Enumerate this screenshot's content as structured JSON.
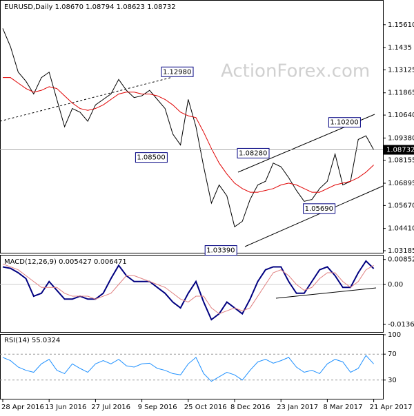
{
  "chart_data": {
    "type": "line",
    "header": "EURUSD,Daily  1.08670 1.08794 1.08623 1.08732",
    "watermark": "ActionForex.com",
    "categories": [
      "28 Apr 2016",
      null,
      null,
      null,
      null,
      null,
      "13 Jun 2016",
      null,
      null,
      null,
      null,
      null,
      "27 Jul 2016",
      null,
      null,
      null,
      null,
      null,
      "9 Sep 2016",
      null,
      null,
      null,
      null,
      null,
      "25 Oct 2016",
      null,
      null,
      null,
      null,
      null,
      "8 Dec 2016",
      null,
      null,
      null,
      null,
      null,
      "23 Jan 2017",
      null,
      null,
      null,
      null,
      null,
      "8 Mar 2017",
      null,
      null,
      null,
      null,
      null,
      "21 Apr 2017"
    ],
    "ylim": [
      1.0311,
      1.1689
    ],
    "yticks": [
      {
        "value": 1.1561,
        "label": "1.15610"
      },
      1.1435,
      1.13125,
      1.11865,
      {
        "value": 1.1064,
        "label": "1.10640"
      },
      {
        "value": 1.0938,
        "label": "1.09380"
      },
      1.08155,
      1.06895,
      {
        "value": 1.0567,
        "label": "1.05670"
      },
      {
        "value": 1.0441,
        "label": "1.04410"
      },
      1.03185
    ],
    "last_price": {
      "value": 1.08732,
      "label": "1.08732"
    },
    "series": [
      {
        "name": "EURUSD",
        "color": "#000000",
        "values": [
          1.154,
          1.144,
          1.13,
          1.125,
          1.118,
          1.127,
          1.13,
          1.115,
          1.1,
          1.11,
          1.108,
          1.103,
          1.112,
          1.115,
          1.118,
          1.126,
          1.12,
          1.116,
          1.117,
          1.12,
          1.115,
          1.11,
          1.096,
          1.09,
          1.115,
          1.1,
          1.078,
          1.058,
          1.068,
          1.062,
          1.045,
          1.048,
          1.06,
          1.068,
          1.07,
          1.08,
          1.078,
          1.072,
          1.065,
          1.059,
          1.06,
          1.066,
          1.07,
          1.085,
          1.068,
          1.07,
          1.093,
          1.095,
          1.0873
        ]
      },
      {
        "name": "MA",
        "color": "#e00000",
        "values": [
          1.127,
          1.127,
          1.124,
          1.121,
          1.119,
          1.12,
          1.122,
          1.121,
          1.117,
          1.113,
          1.11,
          1.109,
          1.11,
          1.112,
          1.115,
          1.118,
          1.119,
          1.119,
          1.118,
          1.118,
          1.117,
          1.115,
          1.112,
          1.108,
          1.106,
          1.105,
          1.097,
          1.088,
          1.08,
          1.074,
          1.069,
          1.066,
          1.064,
          1.064,
          1.065,
          1.066,
          1.068,
          1.069,
          1.068,
          1.066,
          1.064,
          1.064,
          1.066,
          1.068,
          1.069,
          1.07,
          1.072,
          1.075,
          1.079
        ]
      }
    ],
    "annotations": [
      {
        "text": "1.12980",
        "index": 25,
        "value": 1.1298
      },
      {
        "text": "1.08500",
        "index": 22,
        "value": 1.085
      },
      {
        "text": "1.08280",
        "index": 35,
        "value": 1.0828
      },
      {
        "text": "1.10200",
        "index": 47,
        "value": 1.102
      },
      {
        "text": "1.05690",
        "index": 43,
        "value": 1.0569
      },
      {
        "text": "1.03390",
        "index": 31,
        "value": 1.0339
      }
    ],
    "macd": {
      "title": "MACD(12,26,9) 0.005427 0.006471",
      "ylim": [
        -0.0162,
        0.0101
      ],
      "yticks": [
        0.008521,
        {
          "value": 0,
          "label": "0.00"
        },
        -0.013624
      ],
      "series": [
        {
          "name": "MACD",
          "color": "#000080",
          "values": [
            0.006,
            0.0055,
            0.004,
            0.002,
            -0.004,
            -0.003,
            0.001,
            -0.002,
            -0.005,
            -0.005,
            -0.004,
            -0.005,
            -0.005,
            -0.003,
            0.002,
            0.0065,
            0.003,
            0.001,
            0.001,
            0.001,
            -0.001,
            -0.003,
            -0.006,
            -0.008,
            -0.003,
            0.001,
            -0.006,
            -0.012,
            -0.01,
            -0.006,
            -0.008,
            -0.01,
            -0.005,
            0.001,
            0.005,
            0.006,
            0.006,
            0.001,
            -0.003,
            -0.003,
            0.001,
            0.005,
            0.006,
            0.003,
            -0.001,
            -0.001,
            0.004,
            0.008,
            0.0054
          ]
        },
        {
          "name": "Signal",
          "color": "#e08080",
          "values": [
            0.007,
            0.006,
            0.005,
            0.003,
            0.001,
            -0.001,
            -0.001,
            -0.001,
            -0.003,
            -0.004,
            -0.004,
            -0.004,
            -0.005,
            -0.004,
            -0.003,
            0,
            0.003,
            0.003,
            0.002,
            0.001,
            0,
            -0.001,
            -0.003,
            -0.005,
            -0.006,
            -0.004,
            -0.004,
            -0.008,
            -0.01,
            -0.009,
            -0.008,
            -0.009,
            -0.008,
            -0.004,
            0,
            0.004,
            0.005,
            0.003,
            0,
            -0.002,
            -0.001,
            0.002,
            0.004,
            0.004,
            0.001,
            -0.001,
            0.001,
            0.005,
            0.0065
          ]
        }
      ]
    },
    "rsi": {
      "title": "RSI(14) 55.0324",
      "ylim": [
        0,
        100
      ],
      "yticks": [
        100,
        70,
        30
      ],
      "series": [
        {
          "name": "RSI",
          "color": "#1e90ff",
          "values": [
            65,
            60,
            50,
            45,
            42,
            55,
            62,
            45,
            40,
            55,
            48,
            42,
            55,
            60,
            55,
            62,
            52,
            50,
            55,
            56,
            48,
            45,
            40,
            38,
            55,
            65,
            40,
            28,
            35,
            42,
            38,
            30,
            45,
            58,
            62,
            56,
            60,
            65,
            50,
            42,
            45,
            40,
            55,
            62,
            58,
            42,
            48,
            68,
            55
          ]
        }
      ]
    }
  }
}
